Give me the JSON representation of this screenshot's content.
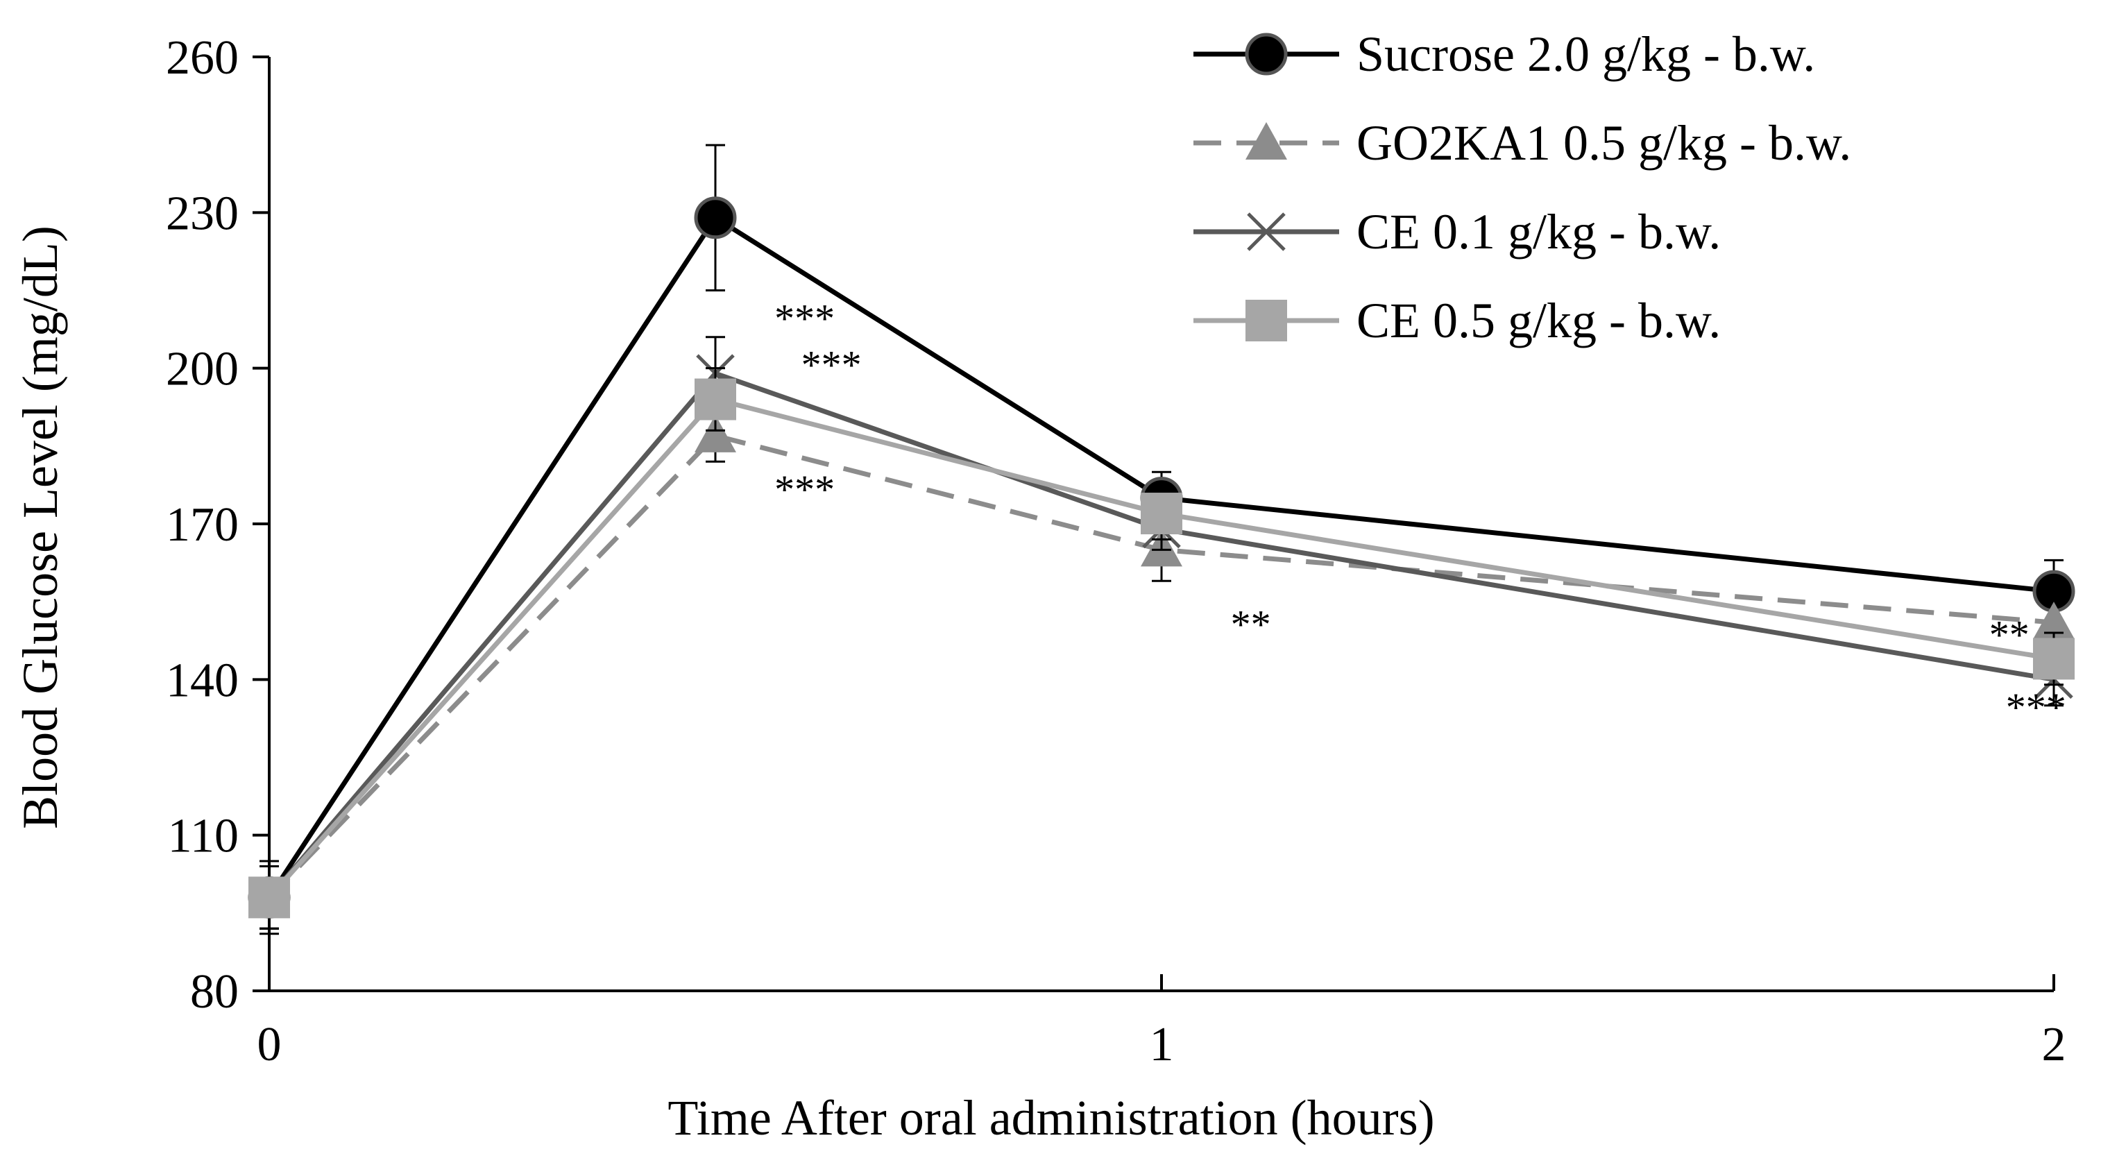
{
  "chart_data": {
    "type": "line",
    "title": "",
    "xlabel": "Time After oral administration (hours)",
    "ylabel": "Blood Glucose Level (mg/dL)",
    "xlim": [
      0,
      2
    ],
    "ylim": [
      80,
      260
    ],
    "x_ticks": [
      0,
      1,
      2
    ],
    "x_tick_labels": [
      "0",
      "1",
      "2"
    ],
    "y_ticks": [
      80,
      110,
      140,
      170,
      200,
      230,
      260
    ],
    "y_tick_labels": [
      "80",
      "110",
      "140",
      "170",
      "200",
      "230",
      "260"
    ],
    "grid": false,
    "legend_position": "top-right",
    "x": [
      0,
      0.5,
      1,
      2
    ],
    "series": [
      {
        "name": "Sucrose 2.0 g/kg - b.w.",
        "values": [
          98,
          229,
          175,
          157
        ],
        "errors": [
          7,
          14,
          5,
          6
        ],
        "color": "#000000",
        "marker": "circle",
        "dash": "solid"
      },
      {
        "name": "GO2KA1 0.5 g/kg - b.w.",
        "values": [
          98,
          187,
          165,
          151
        ],
        "errors": [
          6,
          5,
          6,
          5
        ],
        "color": "#8c8c8c",
        "marker": "triangle",
        "dash": "dashed"
      },
      {
        "name": "CE 0.1 g/kg - b.w.",
        "values": [
          98,
          199,
          169,
          140
        ],
        "errors": [
          6,
          7,
          4,
          5
        ],
        "color": "#595959",
        "marker": "x",
        "dash": "solid"
      },
      {
        "name": "CE 0.5 g/kg - b.w.",
        "values": [
          98,
          194,
          172,
          144
        ],
        "errors": [
          6,
          6,
          5,
          5
        ],
        "color": "#a6a6a6",
        "marker": "square",
        "dash": "solid"
      }
    ],
    "annotations": [
      {
        "text": "***",
        "x": 0.6,
        "y": 207
      },
      {
        "text": "***",
        "x": 0.63,
        "y": 198
      },
      {
        "text": "***",
        "x": 0.6,
        "y": 174
      },
      {
        "text": "**",
        "x": 1.1,
        "y": 148
      },
      {
        "text": "**",
        "x": 1.95,
        "y": 146
      },
      {
        "text": "***",
        "x": 1.98,
        "y": 132
      }
    ]
  }
}
